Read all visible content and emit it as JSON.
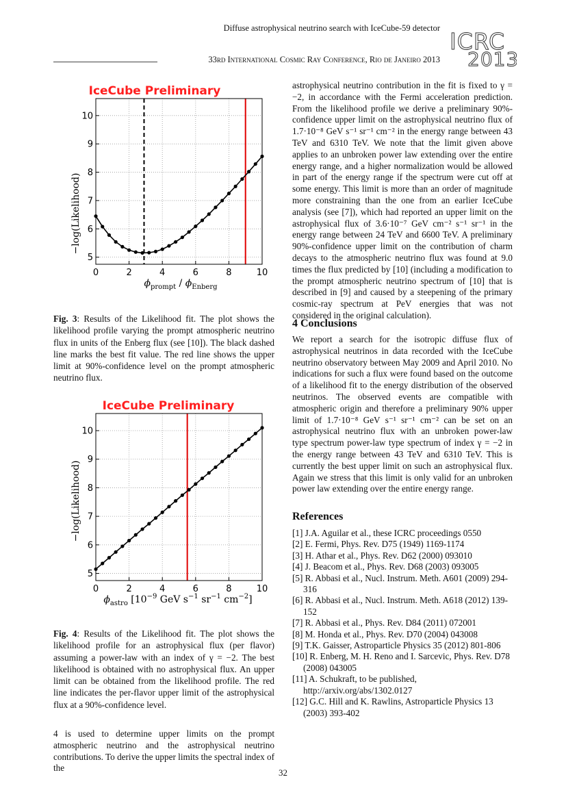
{
  "header": {
    "line1": "Diffuse astrophysical neutrino search with IceCube-59 detector",
    "line2": "33rd International Cosmic Ray Conference, Rio de Janeiro 2013",
    "logo_top": "ICRC",
    "logo_bottom": "2013"
  },
  "figure3": {
    "title": "IceCube Preliminary",
    "ylabel": "−log(Likelihood)",
    "xlabel": "ϕprompt / ϕEnberg",
    "caption_label": "Fig. 3",
    "caption": ": Results of the Likelihood fit. The plot shows the likelihood profile varying the prompt atmospheric neutrino flux in units of the Enberg flux (see [10]). The black dashed line marks the best fit value. The red line shows the upper limit at 90%-confidence level on the prompt atmospheric neutrino flux."
  },
  "figure4": {
    "title": "IceCube Preliminary",
    "ylabel": "−log(Likelihood)",
    "xlabel": "ϕastro [10⁻⁹ GeV s⁻¹ sr⁻¹ cm⁻²]",
    "caption_label": "Fig. 4",
    "caption": ": Results of the Likelihood fit. The plot shows the likelihood profile for an astrophysical flux (per flavor) assuming a power-law with an index of γ = −2. The best likelihood is obtained with no astrophysical flux. An upper limit can be obtained from the likelihood profile. The red line indicates the per-flavor upper limit of the astrophysical flux at a 90%-confidence level."
  },
  "left_bottom_text": "4 is used to determine upper limits on the prompt atmospheric neutrino and the astrophysical neutrino contributions. To derive the upper limits the spectral index of the",
  "right_top_text": "astrophysical neutrino contribution in the fit is fixed to γ = −2, in accordance with the Fermi acceleration prediction. From the likelihood profile we derive a preliminary 90%-confidence upper limit on the astrophysical neutrino flux of 1.7·10⁻⁸ GeV s⁻¹ sr⁻¹ cm⁻² in the energy range between 43 TeV and 6310 TeV. We note that the limit given above applies to an unbroken power law extending over the entire energy range, and a higher normalization would be allowed in part of the energy range if the spectrum were cut off at some energy. This limit is more than an order of magnitude more constraining than the one from an earlier IceCube analysis (see [7]), which had reported an upper limit on the astrophysical flux of 3.6·10⁻⁷ GeV cm⁻² s⁻¹ sr⁻¹ in the energy range between 24 TeV and 6600 TeV. A preliminary 90%-confidence upper limit on the contribution of charm decays to the atmospheric neutrino flux was found at 9.0 times the flux predicted by [10] (including a modification to the prompt atmospheric neutrino spectrum of [10] that is described in [9] and caused by a steepening of the primary cosmic-ray spectrum at PeV energies that was not considered in the original calculation).",
  "conclusions": {
    "heading": "4   Conclusions",
    "text": "We report a search for the isotropic diffuse flux of astrophysical neutrinos in data recorded with the IceCube neutrino observatory between May 2009 and April 2010. No indications for such a flux were found based on the outcome of a likelihood fit to the energy distribution of the observed neutrinos. The observed events are compatible with atmospheric origin and therefore a preliminary 90% upper limit of 1.7·10⁻⁸ GeV s⁻¹ sr⁻¹ cm⁻² can be set on an astrophysical neutrino flux with an unbroken power-law type spectrum power-law type spectrum of index γ = −2 in the energy range between 43 TeV and 6310 TeV. This is currently the best upper limit on such an astrophysical flux. Again we stress that this limit is only valid for an unbroken power law extending over the entire energy range."
  },
  "references": {
    "heading": "References",
    "items": [
      "[1]  J.A. Aguilar et al., these ICRC proceedings 0550",
      "[2]  E. Fermi, Phys. Rev. D75 (1949) 1169-1174",
      "[3]  H. Athar et al., Phys. Rev. D62 (2000) 093010",
      "[4]  J. Beacom et al., Phys. Rev. D68 (2003) 093005",
      "[5]  R. Abbasi et al., Nucl. Instrum. Meth. A601 (2009) 294-316",
      "[6]  R. Abbasi et al., Nucl. Instrum. Meth. A618 (2012) 139-152",
      "[7]  R. Abbasi et al., Phys. Rev. D84 (2011) 072001",
      "[8]  M. Honda et al., Phys. Rev. D70 (2004) 043008",
      "[9]  T.K. Gaisser, Astroparticle Physics 35 (2012) 801-806",
      "[10]  R. Enberg, M. H. Reno and I. Sarcevic, Phys. Rev. D78 (2008) 043005",
      "[11]  A. Schukraft, to be published, http://arxiv.org/abs/1302.0127",
      "[12]  G.C. Hill and K. Rawlins, Astroparticle Physics 13 (2003) 393-402"
    ]
  },
  "page_number": "32",
  "chart_data": [
    {
      "type": "line",
      "title": "IceCube Preliminary",
      "xlabel": "ϕprompt / ϕEnberg",
      "ylabel": "−log(Likelihood)",
      "xlim": [
        0,
        10
      ],
      "ylim": [
        4.75,
        10.6
      ],
      "xticks": [
        0,
        2,
        4,
        6,
        8,
        10
      ],
      "yticks": [
        5,
        6,
        7,
        8,
        9,
        10
      ],
      "grid": true,
      "best_fit_x": 2.9,
      "upper_limit_x": 9.0,
      "x": [
        0,
        0.4,
        0.8,
        1.2,
        1.6,
        2.0,
        2.4,
        2.8,
        3.2,
        3.6,
        4.0,
        4.4,
        4.8,
        5.2,
        5.6,
        6.0,
        6.4,
        6.8,
        7.2,
        7.6,
        8.0,
        8.4,
        8.8,
        9.2,
        9.6,
        10.0
      ],
      "y": [
        6.45,
        6.08,
        5.78,
        5.54,
        5.37,
        5.25,
        5.18,
        5.15,
        5.16,
        5.2,
        5.28,
        5.4,
        5.54,
        5.7,
        5.89,
        6.09,
        6.3,
        6.52,
        6.76,
        7.0,
        7.25,
        7.5,
        7.76,
        8.02,
        8.29,
        8.56
      ]
    },
    {
      "type": "line",
      "title": "IceCube Preliminary",
      "xlabel": "ϕastro [10⁻⁹ GeV s⁻¹ sr⁻¹ cm⁻²]",
      "ylabel": "−log(Likelihood)",
      "xlim": [
        0,
        10
      ],
      "ylim": [
        4.75,
        10.6
      ],
      "xticks": [
        0,
        2,
        4,
        6,
        8,
        10
      ],
      "yticks": [
        5,
        6,
        7,
        8,
        9,
        10
      ],
      "grid": true,
      "upper_limit_x": 5.5,
      "x": [
        0,
        0.4,
        0.8,
        1.2,
        1.6,
        2.0,
        2.4,
        2.8,
        3.2,
        3.6,
        4.0,
        4.4,
        4.8,
        5.2,
        5.6,
        6.0,
        6.4,
        6.8,
        7.2,
        7.6,
        8.0,
        8.4,
        8.8,
        9.2,
        9.6,
        10.0
      ],
      "y": [
        5.15,
        5.35,
        5.55,
        5.75,
        5.95,
        6.15,
        6.35,
        6.55,
        6.74,
        6.94,
        7.14,
        7.34,
        7.54,
        7.74,
        7.93,
        8.13,
        8.33,
        8.52,
        8.72,
        8.92,
        9.11,
        9.31,
        9.51,
        9.7,
        9.9,
        10.1
      ]
    }
  ]
}
